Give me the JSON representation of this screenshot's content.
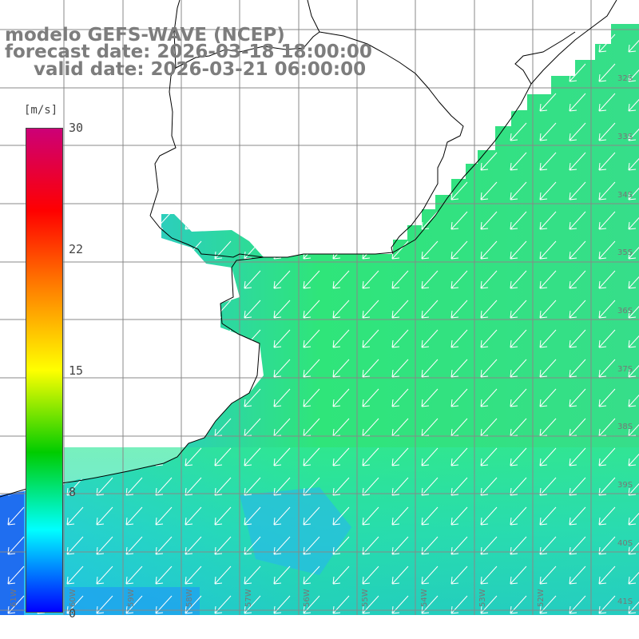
{
  "title": {
    "line1": "modelo GEFS-WAVE (NCEP)",
    "line2": "forecast date: 2026-03-18 18:00:00",
    "line3": "valid date: 2026-03-21 06:00:00"
  },
  "colorbar": {
    "units": "[m/s]",
    "ticks": [
      "30",
      "22",
      "15",
      "8",
      "0"
    ],
    "tick_values": [
      30,
      22,
      15,
      8,
      0
    ],
    "range": [
      0,
      30
    ],
    "colors": [
      "#0000ff",
      "#00ffff",
      "#00cc00",
      "#ffff00",
      "#ff8000",
      "#ff0000",
      "#cc0077"
    ]
  },
  "latitude_labels": [
    "32S",
    "33S",
    "34S",
    "35S",
    "36S",
    "37S",
    "38S",
    "39S",
    "40S",
    "41S"
  ],
  "longitude_labels": [
    "61W",
    "60W",
    "59W",
    "58W",
    "57W",
    "56W",
    "55W",
    "54W",
    "53W",
    "52W"
  ],
  "map": {
    "land_color": "#ffffff",
    "coast_color": "#000000",
    "grid_color": "#888888",
    "arrow_color": "#ffffff",
    "arrow_direction": "southwest"
  }
}
